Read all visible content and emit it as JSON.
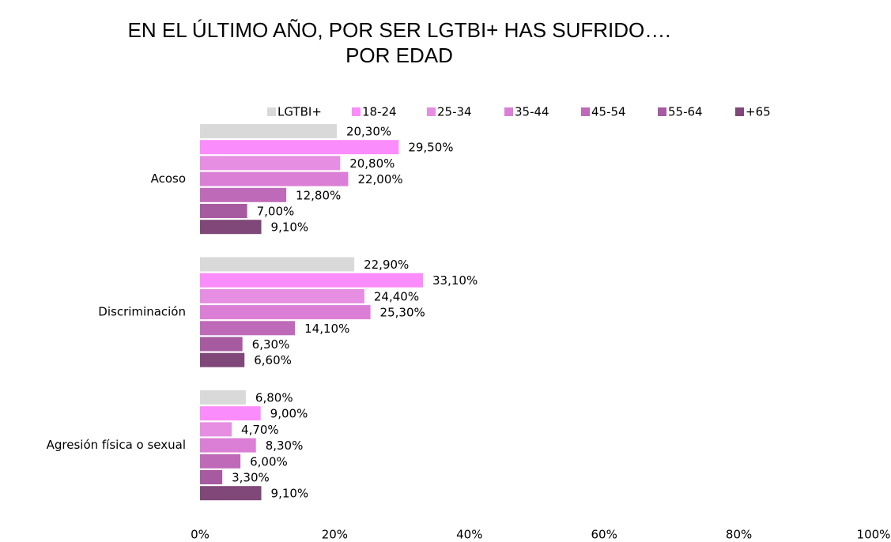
{
  "chart_data": {
    "type": "bar",
    "orientation": "horizontal",
    "title": [
      "EN EL ÚLTIMO AÑO, POR SER LGTBI+ HAS SUFRIDO….",
      "POR EDAD"
    ],
    "categories": [
      "Acoso",
      "Discriminación",
      "Agresión física o sexual"
    ],
    "series": [
      {
        "name": "LGTBI+",
        "color": "#d9d9d9",
        "values": [
          20.3,
          22.9,
          6.8
        ],
        "value_labels": [
          "20,30%",
          "22,90%",
          "6,80%"
        ]
      },
      {
        "name": "18-24",
        "color": "#fb8cfb",
        "values": [
          29.5,
          33.1,
          9.0
        ],
        "value_labels": [
          "29,50%",
          "33,10%",
          "9,00%"
        ]
      },
      {
        "name": "25-34",
        "color": "#e68ee2",
        "values": [
          20.8,
          24.4,
          4.7
        ],
        "value_labels": [
          "20,80%",
          "24,40%",
          "4,70%"
        ]
      },
      {
        "name": "35-44",
        "color": "#db7fd6",
        "values": [
          22.0,
          25.3,
          8.3
        ],
        "value_labels": [
          "22,00%",
          "25,30%",
          "8,30%"
        ]
      },
      {
        "name": "45-54",
        "color": "#bf6ab8",
        "values": [
          12.8,
          14.1,
          6.0
        ],
        "value_labels": [
          "12,80%",
          "14,10%",
          "6,00%"
        ]
      },
      {
        "name": "55-64",
        "color": "#a65aa0",
        "values": [
          7.0,
          6.3,
          3.3
        ],
        "value_labels": [
          "7,00%",
          "6,30%",
          "3,30%"
        ]
      },
      {
        "name": "+65",
        "color": "#7f4878",
        "values": [
          9.1,
          6.6,
          9.1
        ],
        "value_labels": [
          "9,10%",
          "6,60%",
          "9,10%"
        ]
      }
    ],
    "xlim": [
      0,
      100
    ],
    "xticks": [
      {
        "value": 0,
        "label": "0%"
      },
      {
        "value": 20,
        "label": "20%"
      },
      {
        "value": 40,
        "label": "40%"
      },
      {
        "value": 60,
        "label": "60%"
      },
      {
        "value": 80,
        "label": "80%"
      },
      {
        "value": 100,
        "label": "100%"
      }
    ],
    "grid": false,
    "legend": "top"
  }
}
